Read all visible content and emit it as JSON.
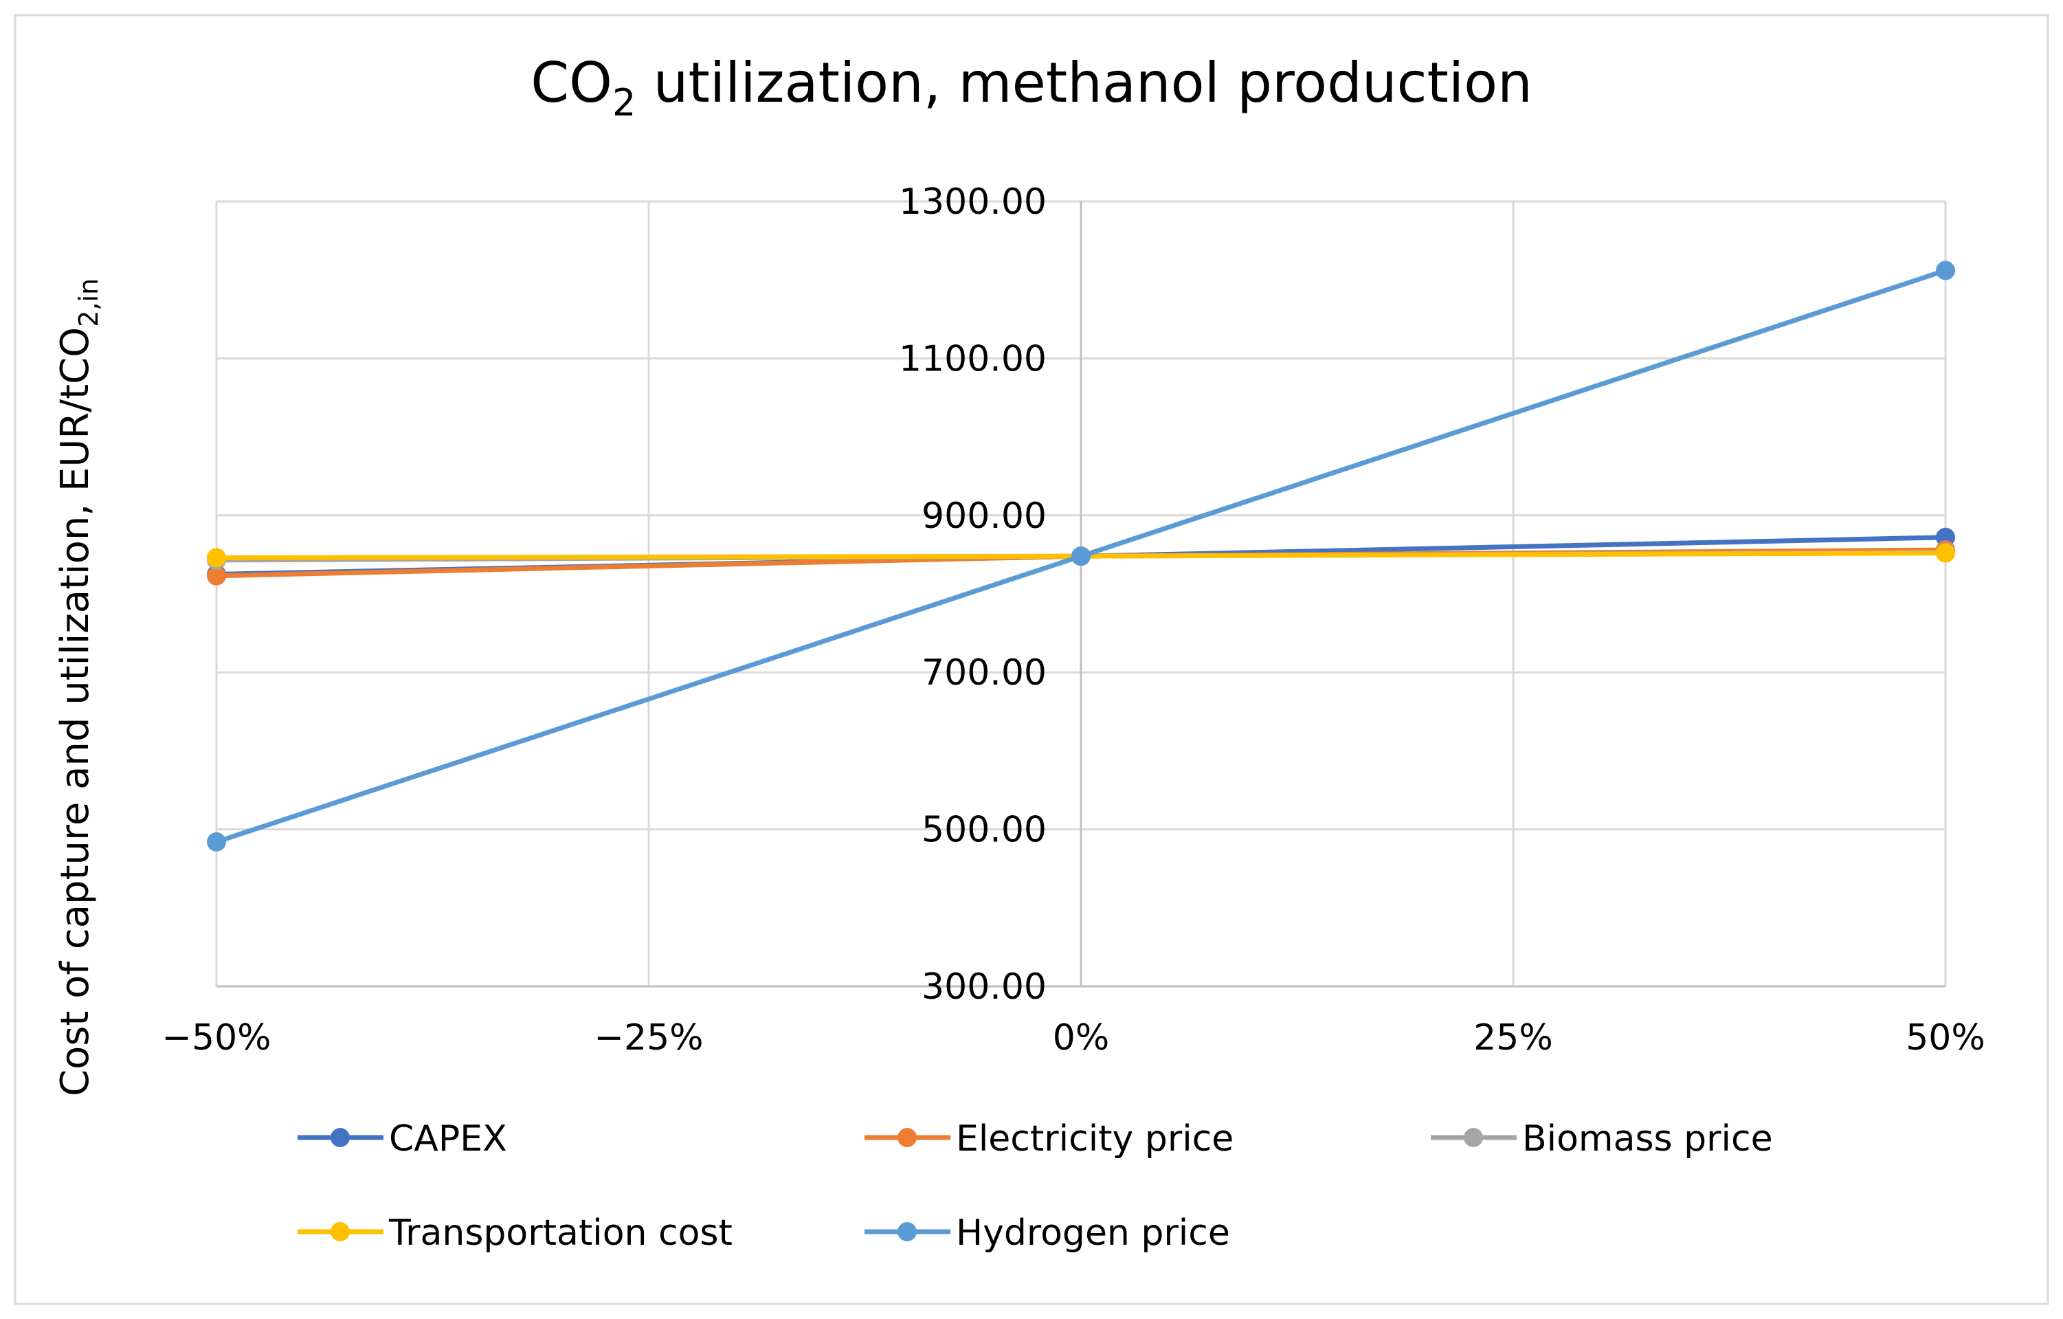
{
  "chart_data": {
    "type": "line",
    "title": {
      "prefix": "CO",
      "sub": "2",
      "suffix": " utilization, methanol production"
    },
    "ylabel": {
      "prefix": "Cost of capture and utilization,  EUR/tCO",
      "sub": "2,in"
    },
    "xlabel": "",
    "categories": [
      "−50%",
      "−25%",
      "0%",
      "25%",
      "50%"
    ],
    "x": [
      -50,
      -25,
      0,
      25,
      50
    ],
    "ylim": [
      300,
      1300
    ],
    "yticks": [
      300,
      500,
      700,
      900,
      1100,
      1300
    ],
    "ytick_labels": [
      "300.00",
      "500.00",
      "700.00",
      "900.00",
      "1100.00",
      "1300.00"
    ],
    "grid": true,
    "legend_position": "bottom",
    "series": [
      {
        "name": "CAPEX",
        "color": "#4472C4",
        "x": [
          -50,
          0,
          50
        ],
        "values": [
          825,
          848,
          872
        ]
      },
      {
        "name": "Electricity price",
        "color": "#ED7D31",
        "x": [
          -50,
          0,
          50
        ],
        "values": [
          823,
          848,
          856
        ]
      },
      {
        "name": "Biomass price",
        "color": "#A5A5A5",
        "x": [
          -50,
          0,
          50
        ],
        "values": [
          843,
          848,
          853
        ]
      },
      {
        "name": "Transportation cost",
        "color": "#FFC000",
        "x": [
          -50,
          0,
          50
        ],
        "values": [
          846,
          848,
          852
        ]
      },
      {
        "name": "Hydrogen price",
        "color": "#5B9BD5",
        "x": [
          -50,
          0,
          50
        ],
        "values": [
          484,
          848,
          1212
        ]
      }
    ]
  }
}
